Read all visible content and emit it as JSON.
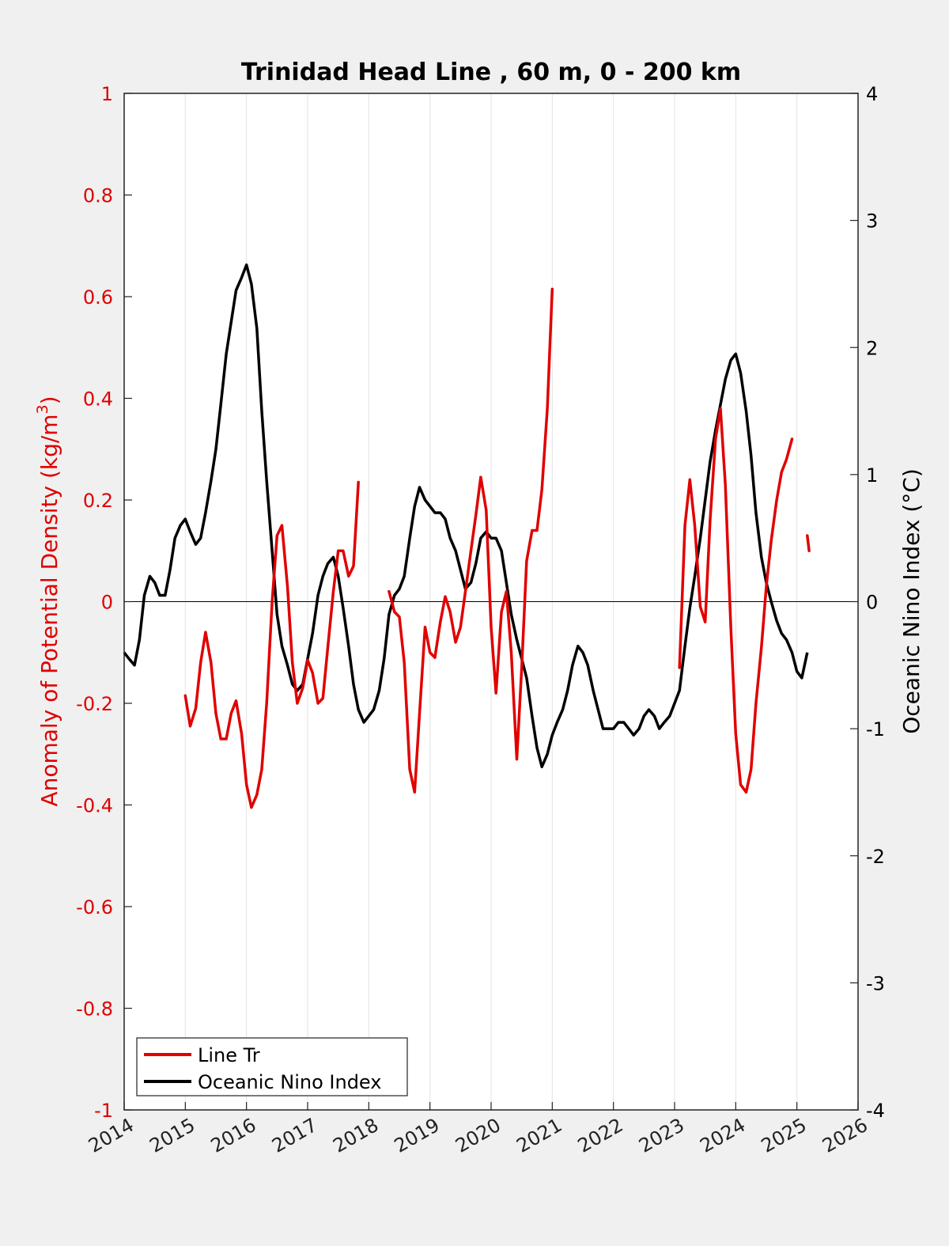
{
  "chart_data": {
    "type": "line",
    "title": "Trinidad Head Line , 60 m, 0 - 200 km",
    "xlabel": "",
    "ylabel": "Anomaly of Potential Density (kg/m",
    "ylabel_superscript": "3",
    "ylabel_close": ")",
    "y2label": "Oceanic Nino Index (°C)",
    "xlim": [
      2014,
      2026
    ],
    "ylim": [
      -1,
      1
    ],
    "y2lim": [
      -4,
      4
    ],
    "x_ticks": [
      "2014",
      "2015",
      "2016",
      "2017",
      "2018",
      "2019",
      "2020",
      "2021",
      "2022",
      "2023",
      "2024",
      "2025",
      "2026"
    ],
    "y_ticks": [
      "-1",
      "-0.8",
      "-0.6",
      "-0.4",
      "-0.2",
      "0",
      "0.2",
      "0.4",
      "0.6",
      "0.8",
      "1"
    ],
    "y2_ticks": [
      "-4",
      "-3",
      "-2",
      "-1",
      "0",
      "1",
      "2",
      "3",
      "4"
    ],
    "grid": "vertical",
    "legend_position": "bottom-left",
    "legend": [
      "Line Tr",
      "Oceanic Nino Index"
    ],
    "colors": {
      "line_tr": "#e00000",
      "oni": "#000000"
    },
    "series": [
      {
        "name": "Line Tr",
        "axis": "left",
        "segments": [
          [
            [
              2015.0,
              -0.185
            ],
            [
              2015.08,
              -0.245
            ],
            [
              2015.17,
              -0.21
            ],
            [
              2015.25,
              -0.12
            ],
            [
              2015.33,
              -0.06
            ],
            [
              2015.42,
              -0.12
            ],
            [
              2015.5,
              -0.22
            ],
            [
              2015.58,
              -0.27
            ],
            [
              2015.67,
              -0.27
            ],
            [
              2015.75,
              -0.22
            ],
            [
              2015.83,
              -0.195
            ],
            [
              2015.92,
              -0.26
            ],
            [
              2016.0,
              -0.36
            ],
            [
              2016.08,
              -0.405
            ],
            [
              2016.17,
              -0.38
            ],
            [
              2016.25,
              -0.33
            ],
            [
              2016.33,
              -0.2
            ],
            [
              2016.42,
              0.0
            ],
            [
              2016.5,
              0.13
            ],
            [
              2016.58,
              0.15
            ],
            [
              2016.67,
              0.03
            ],
            [
              2016.75,
              -0.12
            ],
            [
              2016.83,
              -0.2
            ],
            [
              2016.92,
              -0.17
            ],
            [
              2017.0,
              -0.115
            ],
            [
              2017.08,
              -0.14
            ],
            [
              2017.17,
              -0.2
            ],
            [
              2017.25,
              -0.19
            ],
            [
              2017.33,
              -0.09
            ],
            [
              2017.42,
              0.02
            ],
            [
              2017.5,
              0.1
            ],
            [
              2017.58,
              0.1
            ],
            [
              2017.67,
              0.05
            ],
            [
              2017.75,
              0.07
            ],
            [
              2017.83,
              0.235
            ]
          ],
          [
            [
              2018.33,
              0.02
            ],
            [
              2018.42,
              -0.02
            ],
            [
              2018.5,
              -0.03
            ],
            [
              2018.58,
              -0.12
            ],
            [
              2018.67,
              -0.33
            ],
            [
              2018.75,
              -0.375
            ],
            [
              2018.83,
              -0.22
            ],
            [
              2018.92,
              -0.05
            ],
            [
              2019.0,
              -0.1
            ],
            [
              2019.08,
              -0.11
            ],
            [
              2019.17,
              -0.04
            ],
            [
              2019.25,
              0.01
            ],
            [
              2019.33,
              -0.02
            ],
            [
              2019.42,
              -0.08
            ],
            [
              2019.5,
              -0.05
            ],
            [
              2019.58,
              0.02
            ],
            [
              2019.67,
              0.1
            ],
            [
              2019.75,
              0.17
            ],
            [
              2019.83,
              0.245
            ],
            [
              2019.92,
              0.18
            ],
            [
              2020.0,
              -0.05
            ],
            [
              2020.08,
              -0.18
            ],
            [
              2020.17,
              -0.02
            ],
            [
              2020.25,
              0.02
            ],
            [
              2020.33,
              -0.1
            ],
            [
              2020.42,
              -0.31
            ],
            [
              2020.5,
              -0.13
            ],
            [
              2020.58,
              0.08
            ],
            [
              2020.67,
              0.14
            ],
            [
              2020.75,
              0.14
            ],
            [
              2020.83,
              0.22
            ],
            [
              2020.92,
              0.38
            ],
            [
              2021.0,
              0.615
            ]
          ],
          [
            [
              2023.08,
              -0.13
            ],
            [
              2023.17,
              0.15
            ],
            [
              2023.25,
              0.24
            ],
            [
              2023.33,
              0.15
            ],
            [
              2023.42,
              -0.01
            ],
            [
              2023.5,
              -0.04
            ],
            [
              2023.58,
              0.16
            ],
            [
              2023.67,
              0.32
            ],
            [
              2023.75,
              0.38
            ],
            [
              2023.83,
              0.23
            ],
            [
              2023.92,
              -0.05
            ],
            [
              2024.0,
              -0.26
            ],
            [
              2024.08,
              -0.36
            ],
            [
              2024.17,
              -0.375
            ],
            [
              2024.25,
              -0.33
            ],
            [
              2024.33,
              -0.2
            ],
            [
              2024.42,
              -0.09
            ],
            [
              2024.5,
              0.03
            ],
            [
              2024.58,
              0.12
            ],
            [
              2024.67,
              0.2
            ],
            [
              2024.75,
              0.255
            ],
            [
              2024.83,
              0.28
            ],
            [
              2024.92,
              0.32
            ]
          ],
          [
            [
              2025.17,
              0.13
            ],
            [
              2025.2,
              0.1
            ]
          ]
        ]
      },
      {
        "name": "Oceanic Nino Index",
        "axis": "right",
        "points": [
          [
            2014.0,
            -0.4
          ],
          [
            2014.08,
            -0.45
          ],
          [
            2014.17,
            -0.5
          ],
          [
            2014.25,
            -0.3
          ],
          [
            2014.33,
            0.05
          ],
          [
            2014.42,
            0.2
          ],
          [
            2014.5,
            0.15
          ],
          [
            2014.58,
            0.05
          ],
          [
            2014.67,
            0.05
          ],
          [
            2014.75,
            0.25
          ],
          [
            2014.83,
            0.5
          ],
          [
            2014.92,
            0.6
          ],
          [
            2015.0,
            0.65
          ],
          [
            2015.08,
            0.55
          ],
          [
            2015.17,
            0.45
          ],
          [
            2015.25,
            0.5
          ],
          [
            2015.33,
            0.7
          ],
          [
            2015.42,
            0.95
          ],
          [
            2015.5,
            1.2
          ],
          [
            2015.58,
            1.55
          ],
          [
            2015.67,
            1.95
          ],
          [
            2015.75,
            2.2
          ],
          [
            2015.83,
            2.45
          ],
          [
            2015.92,
            2.55
          ],
          [
            2016.0,
            2.65
          ],
          [
            2016.08,
            2.5
          ],
          [
            2016.17,
            2.15
          ],
          [
            2016.25,
            1.5
          ],
          [
            2016.33,
            0.95
          ],
          [
            2016.42,
            0.4
          ],
          [
            2016.5,
            -0.1
          ],
          [
            2016.58,
            -0.35
          ],
          [
            2016.67,
            -0.5
          ],
          [
            2016.75,
            -0.65
          ],
          [
            2016.83,
            -0.7
          ],
          [
            2016.92,
            -0.65
          ],
          [
            2017.0,
            -0.45
          ],
          [
            2017.08,
            -0.25
          ],
          [
            2017.17,
            0.05
          ],
          [
            2017.25,
            0.2
          ],
          [
            2017.33,
            0.3
          ],
          [
            2017.42,
            0.35
          ],
          [
            2017.5,
            0.2
          ],
          [
            2017.58,
            -0.05
          ],
          [
            2017.67,
            -0.35
          ],
          [
            2017.75,
            -0.65
          ],
          [
            2017.83,
            -0.85
          ],
          [
            2017.92,
            -0.95
          ],
          [
            2018.0,
            -0.9
          ],
          [
            2018.08,
            -0.85
          ],
          [
            2018.17,
            -0.7
          ],
          [
            2018.25,
            -0.45
          ],
          [
            2018.33,
            -0.1
          ],
          [
            2018.42,
            0.05
          ],
          [
            2018.5,
            0.1
          ],
          [
            2018.58,
            0.2
          ],
          [
            2018.67,
            0.5
          ],
          [
            2018.75,
            0.75
          ],
          [
            2018.83,
            0.9
          ],
          [
            2018.92,
            0.8
          ],
          [
            2019.0,
            0.75
          ],
          [
            2019.08,
            0.7
          ],
          [
            2019.17,
            0.7
          ],
          [
            2019.25,
            0.65
          ],
          [
            2019.33,
            0.5
          ],
          [
            2019.42,
            0.4
          ],
          [
            2019.5,
            0.25
          ],
          [
            2019.58,
            0.1
          ],
          [
            2019.67,
            0.15
          ],
          [
            2019.75,
            0.3
          ],
          [
            2019.83,
            0.5
          ],
          [
            2019.92,
            0.55
          ],
          [
            2020.0,
            0.5
          ],
          [
            2020.08,
            0.5
          ],
          [
            2020.17,
            0.4
          ],
          [
            2020.25,
            0.15
          ],
          [
            2020.33,
            -0.1
          ],
          [
            2020.42,
            -0.3
          ],
          [
            2020.5,
            -0.45
          ],
          [
            2020.58,
            -0.6
          ],
          [
            2020.67,
            -0.9
          ],
          [
            2020.75,
            -1.15
          ],
          [
            2020.83,
            -1.3
          ],
          [
            2020.92,
            -1.2
          ],
          [
            2021.0,
            -1.05
          ],
          [
            2021.08,
            -0.95
          ],
          [
            2021.17,
            -0.85
          ],
          [
            2021.25,
            -0.7
          ],
          [
            2021.33,
            -0.5
          ],
          [
            2021.42,
            -0.35
          ],
          [
            2021.5,
            -0.4
          ],
          [
            2021.58,
            -0.5
          ],
          [
            2021.67,
            -0.7
          ],
          [
            2021.75,
            -0.85
          ],
          [
            2021.83,
            -1.0
          ],
          [
            2021.92,
            -1.0
          ],
          [
            2022.0,
            -1.0
          ],
          [
            2022.08,
            -0.95
          ],
          [
            2022.17,
            -0.95
          ],
          [
            2022.25,
            -1.0
          ],
          [
            2022.33,
            -1.05
          ],
          [
            2022.42,
            -1.0
          ],
          [
            2022.5,
            -0.9
          ],
          [
            2022.58,
            -0.85
          ],
          [
            2022.67,
            -0.9
          ],
          [
            2022.75,
            -1.0
          ],
          [
            2022.83,
            -0.95
          ],
          [
            2022.92,
            -0.9
          ],
          [
            2023.0,
            -0.8
          ],
          [
            2023.08,
            -0.7
          ],
          [
            2023.17,
            -0.35
          ],
          [
            2023.25,
            -0.05
          ],
          [
            2023.33,
            0.2
          ],
          [
            2023.42,
            0.5
          ],
          [
            2023.5,
            0.8
          ],
          [
            2023.58,
            1.1
          ],
          [
            2023.67,
            1.35
          ],
          [
            2023.75,
            1.55
          ],
          [
            2023.83,
            1.75
          ],
          [
            2023.92,
            1.9
          ],
          [
            2024.0,
            1.95
          ],
          [
            2024.08,
            1.8
          ],
          [
            2024.17,
            1.5
          ],
          [
            2024.25,
            1.15
          ],
          [
            2024.33,
            0.7
          ],
          [
            2024.42,
            0.35
          ],
          [
            2024.5,
            0.15
          ],
          [
            2024.58,
            0.0
          ],
          [
            2024.67,
            -0.15
          ],
          [
            2024.75,
            -0.25
          ],
          [
            2024.83,
            -0.3
          ],
          [
            2024.92,
            -0.4
          ],
          [
            2025.0,
            -0.55
          ],
          [
            2025.08,
            -0.6
          ],
          [
            2025.17,
            -0.4
          ]
        ]
      }
    ]
  }
}
